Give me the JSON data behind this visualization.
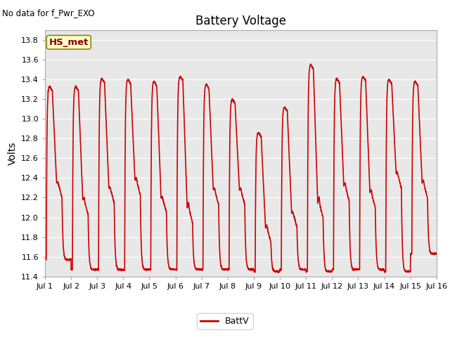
{
  "title": "Battery Voltage",
  "top_left_text": "No data for f_Pwr_EXO",
  "ylabel": "Volts",
  "legend_label": "BattV",
  "legend_color": "#cc0000",
  "line_color": "#cc0000",
  "line_width": 1.2,
  "ylim": [
    11.4,
    13.9
  ],
  "yticks": [
    11.4,
    11.6,
    11.8,
    12.0,
    12.2,
    12.4,
    12.6,
    12.8,
    13.0,
    13.2,
    13.4,
    13.6,
    13.8
  ],
  "xtick_labels": [
    "Jul 1",
    "Jul 2",
    "Jul 3",
    "Jul 4",
    "Jul 5",
    "Jul 6",
    "Jul 7",
    "Jul 8",
    "Jul 9",
    "Jul 10",
    "Jul 11",
    "Jul 12",
    "Jul 13",
    "Jul 14",
    "Jul 15",
    "Jul 16"
  ],
  "fig_bg_color": "#ffffff",
  "plot_bg_color": "#e8e8e8",
  "grid_color": "#ffffff",
  "annotation_box_text": "HS_met",
  "annotation_box_color": "#ffffcc",
  "annotation_box_edge_color": "#888800"
}
